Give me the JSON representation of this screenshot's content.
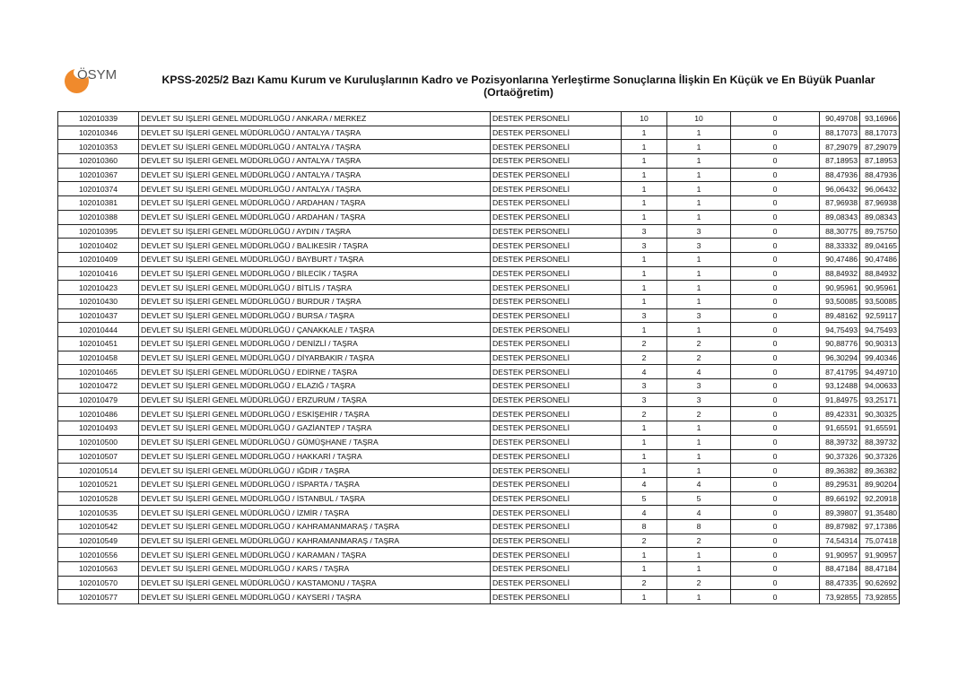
{
  "header": {
    "logo_text": "ÖSYM",
    "title": "KPSS-2025/2 Bazı Kamu Kurum ve Kuruluşlarının Kadro ve Pozisyonlarına Yerleştirme Sonuçlarına İlişkin En Küçük ve En Büyük Puanlar (Ortaöğretim)",
    "brand_color": "#f08a2c"
  },
  "rows": [
    [
      "102010339",
      "DEVLET SU İŞLERİ GENEL MÜDÜRLÜĞÜ / ANKARA / MERKEZ",
      "DESTEK PERSONELİ",
      "10",
      "10",
      "0",
      "90,49708",
      "93,16966"
    ],
    [
      "102010346",
      "DEVLET SU İŞLERİ GENEL MÜDÜRLÜĞÜ / ANTALYA / TAŞRA",
      "DESTEK PERSONELİ",
      "1",
      "1",
      "0",
      "88,17073",
      "88,17073"
    ],
    [
      "102010353",
      "DEVLET SU İŞLERİ GENEL MÜDÜRLÜĞÜ / ANTALYA / TAŞRA",
      "DESTEK PERSONELİ",
      "1",
      "1",
      "0",
      "87,29079",
      "87,29079"
    ],
    [
      "102010360",
      "DEVLET SU İŞLERİ GENEL MÜDÜRLÜĞÜ / ANTALYA / TAŞRA",
      "DESTEK PERSONELİ",
      "1",
      "1",
      "0",
      "87,18953",
      "87,18953"
    ],
    [
      "102010367",
      "DEVLET SU İŞLERİ GENEL MÜDÜRLÜĞÜ / ANTALYA / TAŞRA",
      "DESTEK PERSONELİ",
      "1",
      "1",
      "0",
      "88,47936",
      "88,47936"
    ],
    [
      "102010374",
      "DEVLET SU İŞLERİ GENEL MÜDÜRLÜĞÜ / ANTALYA / TAŞRA",
      "DESTEK PERSONELİ",
      "1",
      "1",
      "0",
      "96,06432",
      "96,06432"
    ],
    [
      "102010381",
      "DEVLET SU İŞLERİ GENEL MÜDÜRLÜĞÜ / ARDAHAN / TAŞRA",
      "DESTEK PERSONELİ",
      "1",
      "1",
      "0",
      "87,96938",
      "87,96938"
    ],
    [
      "102010388",
      "DEVLET SU İŞLERİ GENEL MÜDÜRLÜĞÜ / ARDAHAN / TAŞRA",
      "DESTEK PERSONELİ",
      "1",
      "1",
      "0",
      "89,08343",
      "89,08343"
    ],
    [
      "102010395",
      "DEVLET SU İŞLERİ GENEL MÜDÜRLÜĞÜ / AYDIN / TAŞRA",
      "DESTEK PERSONELİ",
      "3",
      "3",
      "0",
      "88,30775",
      "89,75750"
    ],
    [
      "102010402",
      "DEVLET SU İŞLERİ GENEL MÜDÜRLÜĞÜ / BALIKESİR / TAŞRA",
      "DESTEK PERSONELİ",
      "3",
      "3",
      "0",
      "88,33332",
      "89,04165"
    ],
    [
      "102010409",
      "DEVLET SU İŞLERİ GENEL MÜDÜRLÜĞÜ / BAYBURT / TAŞRA",
      "DESTEK PERSONELİ",
      "1",
      "1",
      "0",
      "90,47486",
      "90,47486"
    ],
    [
      "102010416",
      "DEVLET SU İŞLERİ GENEL MÜDÜRLÜĞÜ / BİLECİK / TAŞRA",
      "DESTEK PERSONELİ",
      "1",
      "1",
      "0",
      "88,84932",
      "88,84932"
    ],
    [
      "102010423",
      "DEVLET SU İŞLERİ GENEL MÜDÜRLÜĞÜ / BİTLİS / TAŞRA",
      "DESTEK PERSONELİ",
      "1",
      "1",
      "0",
      "90,95961",
      "90,95961"
    ],
    [
      "102010430",
      "DEVLET SU İŞLERİ GENEL MÜDÜRLÜĞÜ / BURDUR / TAŞRA",
      "DESTEK PERSONELİ",
      "1",
      "1",
      "0",
      "93,50085",
      "93,50085"
    ],
    [
      "102010437",
      "DEVLET SU İŞLERİ GENEL MÜDÜRLÜĞÜ / BURSA / TAŞRA",
      "DESTEK PERSONELİ",
      "3",
      "3",
      "0",
      "89,48162",
      "92,59117"
    ],
    [
      "102010444",
      "DEVLET SU İŞLERİ GENEL MÜDÜRLÜĞÜ / ÇANAKKALE / TAŞRA",
      "DESTEK PERSONELİ",
      "1",
      "1",
      "0",
      "94,75493",
      "94,75493"
    ],
    [
      "102010451",
      "DEVLET SU İŞLERİ GENEL MÜDÜRLÜĞÜ / DENİZLİ / TAŞRA",
      "DESTEK PERSONELİ",
      "2",
      "2",
      "0",
      "90,88776",
      "90,90313"
    ],
    [
      "102010458",
      "DEVLET SU İŞLERİ GENEL MÜDÜRLÜĞÜ / DİYARBAKIR / TAŞRA",
      "DESTEK PERSONELİ",
      "2",
      "2",
      "0",
      "96,30294",
      "99,40346"
    ],
    [
      "102010465",
      "DEVLET SU İŞLERİ GENEL MÜDÜRLÜĞÜ / EDİRNE / TAŞRA",
      "DESTEK PERSONELİ",
      "4",
      "4",
      "0",
      "87,41795",
      "94,49710"
    ],
    [
      "102010472",
      "DEVLET SU İŞLERİ GENEL MÜDÜRLÜĞÜ / ELAZIĞ / TAŞRA",
      "DESTEK PERSONELİ",
      "3",
      "3",
      "0",
      "93,12488",
      "94,00633"
    ],
    [
      "102010479",
      "DEVLET SU İŞLERİ GENEL MÜDÜRLÜĞÜ / ERZURUM / TAŞRA",
      "DESTEK PERSONELİ",
      "3",
      "3",
      "0",
      "91,84975",
      "93,25171"
    ],
    [
      "102010486",
      "DEVLET SU İŞLERİ GENEL MÜDÜRLÜĞÜ / ESKİŞEHİR / TAŞRA",
      "DESTEK PERSONELİ",
      "2",
      "2",
      "0",
      "89,42331",
      "90,30325"
    ],
    [
      "102010493",
      "DEVLET SU İŞLERİ GENEL MÜDÜRLÜĞÜ / GAZİANTEP / TAŞRA",
      "DESTEK PERSONELİ",
      "1",
      "1",
      "0",
      "91,65591",
      "91,65591"
    ],
    [
      "102010500",
      "DEVLET SU İŞLERİ GENEL MÜDÜRLÜĞÜ / GÜMÜŞHANE / TAŞRA",
      "DESTEK PERSONELİ",
      "1",
      "1",
      "0",
      "88,39732",
      "88,39732"
    ],
    [
      "102010507",
      "DEVLET SU İŞLERİ GENEL MÜDÜRLÜĞÜ / HAKKARİ / TAŞRA",
      "DESTEK PERSONELİ",
      "1",
      "1",
      "0",
      "90,37326",
      "90,37326"
    ],
    [
      "102010514",
      "DEVLET SU İŞLERİ GENEL MÜDÜRLÜĞÜ / IĞDIR / TAŞRA",
      "DESTEK PERSONELİ",
      "1",
      "1",
      "0",
      "89,36382",
      "89,36382"
    ],
    [
      "102010521",
      "DEVLET SU İŞLERİ GENEL MÜDÜRLÜĞÜ / ISPARTA / TAŞRA",
      "DESTEK PERSONELİ",
      "4",
      "4",
      "0",
      "89,29531",
      "89,90204"
    ],
    [
      "102010528",
      "DEVLET SU İŞLERİ GENEL MÜDÜRLÜĞÜ / İSTANBUL / TAŞRA",
      "DESTEK PERSONELİ",
      "5",
      "5",
      "0",
      "89,66192",
      "92,20918"
    ],
    [
      "102010535",
      "DEVLET SU İŞLERİ GENEL MÜDÜRLÜĞÜ / İZMİR / TAŞRA",
      "DESTEK PERSONELİ",
      "4",
      "4",
      "0",
      "89,39807",
      "91,35480"
    ],
    [
      "102010542",
      "DEVLET SU İŞLERİ GENEL MÜDÜRLÜĞÜ / KAHRAMANMARAŞ / TAŞRA",
      "DESTEK PERSONELİ",
      "8",
      "8",
      "0",
      "89,87982",
      "97,17386"
    ],
    [
      "102010549",
      "DEVLET SU İŞLERİ GENEL MÜDÜRLÜĞÜ / KAHRAMANMARAŞ / TAŞRA",
      "DESTEK PERSONELİ",
      "2",
      "2",
      "0",
      "74,54314",
      "75,07418"
    ],
    [
      "102010556",
      "DEVLET SU İŞLERİ GENEL MÜDÜRLÜĞÜ / KARAMAN / TAŞRA",
      "DESTEK PERSONELİ",
      "1",
      "1",
      "0",
      "91,90957",
      "91,90957"
    ],
    [
      "102010563",
      "DEVLET SU İŞLERİ GENEL MÜDÜRLÜĞÜ / KARS / TAŞRA",
      "DESTEK PERSONELİ",
      "1",
      "1",
      "0",
      "88,47184",
      "88,47184"
    ],
    [
      "102010570",
      "DEVLET SU İŞLERİ GENEL MÜDÜRLÜĞÜ / KASTAMONU / TAŞRA",
      "DESTEK PERSONELİ",
      "2",
      "2",
      "0",
      "88,47335",
      "90,62692"
    ],
    [
      "102010577",
      "DEVLET SU İŞLERİ GENEL MÜDÜRLÜĞÜ / KAYSERİ / TAŞRA",
      "DESTEK PERSONELİ",
      "1",
      "1",
      "0",
      "73,92855",
      "73,92855"
    ]
  ]
}
